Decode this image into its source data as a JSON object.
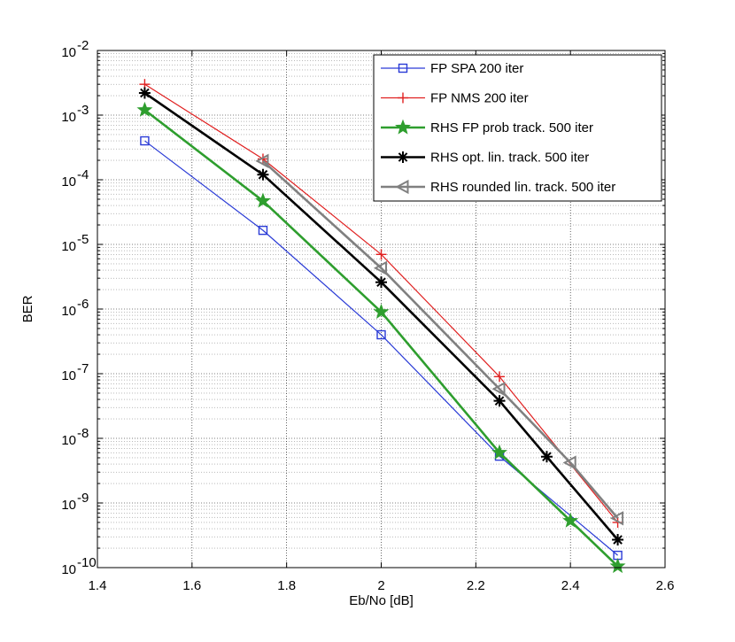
{
  "chart_data": {
    "type": "line",
    "title": "",
    "xlabel": "Eb/No [dB]",
    "ylabel": "BER",
    "xscale": "linear",
    "yscale": "log",
    "xlim": [
      1.4,
      2.6
    ],
    "ylim": [
      1e-10,
      0.01
    ],
    "grid": true,
    "legend_position": "top-right",
    "xticks": [
      1.4,
      1.6,
      1.8,
      2.0,
      2.2,
      2.4,
      2.6
    ],
    "xtick_labels": [
      "1.4",
      "1.6",
      "1.8",
      "2",
      "2.2",
      "2.4",
      "2.6"
    ],
    "ytick_exponents": [
      "-10",
      "-9",
      "-8",
      "-7",
      "-6",
      "-5",
      "-4",
      "-3",
      "-2"
    ],
    "ytick_base": "10",
    "series": [
      {
        "name": "FP SPA 200 iter",
        "color": "#2a3bd6",
        "marker": "square",
        "x": [
          1.5,
          1.75,
          2.0,
          2.25,
          2.5
        ],
        "y": [
          0.0004,
          1.65e-05,
          4e-07,
          5.3e-09,
          1.55e-10
        ]
      },
      {
        "name": "FP NMS 200 iter",
        "color": "#e02020",
        "marker": "plus",
        "x": [
          1.5,
          1.75,
          2.0,
          2.25,
          2.5
        ],
        "y": [
          0.003,
          0.00021,
          7e-06,
          9e-08,
          5e-10
        ]
      },
      {
        "name": "RHS FP prob track. 500 iter",
        "color": "#2e9e2e",
        "marker": "star",
        "x": [
          1.5,
          1.75,
          2.0,
          2.25,
          2.4,
          2.5
        ],
        "y": [
          0.0012,
          4.7e-05,
          9e-07,
          6e-09,
          5.3e-10,
          1.05e-10
        ]
      },
      {
        "name": "RHS opt. lin. track. 500 iter",
        "color": "#000000",
        "marker": "asterisk",
        "x": [
          1.5,
          1.75,
          2.0,
          2.25,
          2.35,
          2.5
        ],
        "y": [
          0.0022,
          0.00012,
          2.6e-06,
          3.8e-08,
          5.2e-09,
          2.7e-10
        ]
      },
      {
        "name": "RHS rounded lin. track. 500 iter",
        "color": "#808080",
        "marker": "triangle-left",
        "x": [
          1.75,
          2.0,
          2.25,
          2.4,
          2.5
        ],
        "y": [
          0.000195,
          4.3e-06,
          5.8e-08,
          4.2e-09,
          5.8e-10
        ]
      }
    ]
  }
}
